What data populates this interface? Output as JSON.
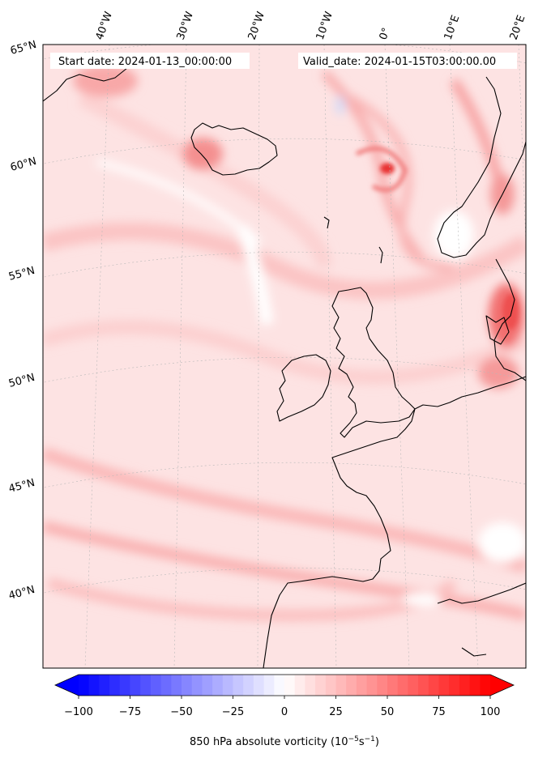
{
  "map": {
    "start_date_label": "Start date: 2024-01-13_00:00:00",
    "valid_date_label": "Valid_date: 2024-01-15T03:00:00.00",
    "field": "850 hPa absolute vorticity",
    "projection": "lambert-conformal",
    "coastline_color": "#000000",
    "gridline_color": "#b0b0b0",
    "longitude_labels": [
      "40°W",
      "30°W",
      "20°W",
      "10°W",
      "0°",
      "10°E",
      "20°E"
    ],
    "latitude_labels": [
      "65°N",
      "60°N",
      "55°N",
      "50°N",
      "45°N",
      "40°N"
    ]
  },
  "colorbar": {
    "label_main": "850 hPa absolute vorticity (10",
    "label_exp1": "−5",
    "label_mid": "s",
    "label_exp2": "−1",
    "label_end": ")",
    "ticks": [
      "−100",
      "−75",
      "−50",
      "−25",
      "0",
      "25",
      "50",
      "75",
      "100"
    ],
    "tick_values": [
      -100,
      -75,
      -50,
      -25,
      0,
      25,
      50,
      75,
      100
    ],
    "vmin": -100,
    "vmax": 100,
    "colormap": "bwr",
    "color_min": "#0000ff",
    "color_mid": "#ffffff",
    "color_max": "#ff0000",
    "extend": "both"
  }
}
